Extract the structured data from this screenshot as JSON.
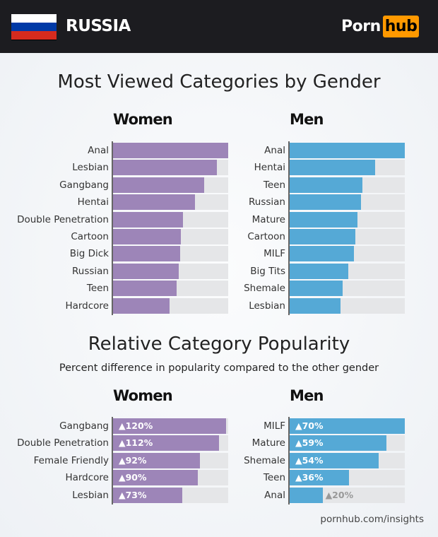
{
  "header": {
    "country": "RUSSIA",
    "logo": {
      "part1": "Porn",
      "part2": "hub"
    },
    "flag_colors": [
      "#ffffff",
      "#0039a6",
      "#d52b1e"
    ]
  },
  "colors": {
    "women": "#9d85b8",
    "men": "#55a9d6",
    "track": "#e5e6e8",
    "logo_accent": "#ff9900"
  },
  "footer": "pornhub.com/insights",
  "chart_data": [
    {
      "type": "bar",
      "orientation": "horizontal",
      "title": "Most Viewed Categories by Gender",
      "group": "Women",
      "unit": "relative to top category",
      "categories": [
        "Anal",
        "Lesbian",
        "Gangbang",
        "Hentai",
        "Double Penetration",
        "Cartoon",
        "Big Dick",
        "Russian",
        "Teen",
        "Hardcore"
      ],
      "values": [
        1.0,
        0.9,
        0.79,
        0.71,
        0.61,
        0.59,
        0.58,
        0.57,
        0.55,
        0.49
      ],
      "xlim": [
        0,
        1
      ]
    },
    {
      "type": "bar",
      "orientation": "horizontal",
      "title": "Most Viewed Categories by Gender",
      "group": "Men",
      "unit": "relative to top category",
      "categories": [
        "Anal",
        "Hentai",
        "Teen",
        "Russian",
        "Mature",
        "Cartoon",
        "MILF",
        "Big Tits",
        "Shemale",
        "Lesbian"
      ],
      "values": [
        1.0,
        0.74,
        0.63,
        0.62,
        0.59,
        0.57,
        0.56,
        0.51,
        0.46,
        0.44
      ],
      "xlim": [
        0,
        1
      ]
    },
    {
      "type": "bar",
      "orientation": "horizontal",
      "title": "Relative Category Popularity",
      "subtitle": "Percent difference in popularity compared to the other gender",
      "group": "Women",
      "categories": [
        "Gangbang",
        "Double Penetration",
        "Female Friendly",
        "Hardcore",
        "Lesbian"
      ],
      "values": [
        120,
        112,
        92,
        90,
        73
      ],
      "labels": [
        "▲120%",
        "▲112%",
        "▲92%",
        "▲90%",
        "▲73%"
      ],
      "xlim": [
        0,
        122
      ]
    },
    {
      "type": "bar",
      "orientation": "horizontal",
      "title": "Relative Category Popularity",
      "subtitle": "Percent difference in popularity compared to the other gender",
      "group": "Men",
      "categories": [
        "MILF",
        "Mature",
        "Shemale",
        "Teen",
        "Anal"
      ],
      "values": [
        70,
        59,
        54,
        36,
        20
      ],
      "labels": [
        "▲70%",
        "▲59%",
        "▲54%",
        "▲36%",
        "▲20%"
      ],
      "xlim": [
        0,
        70
      ]
    }
  ]
}
